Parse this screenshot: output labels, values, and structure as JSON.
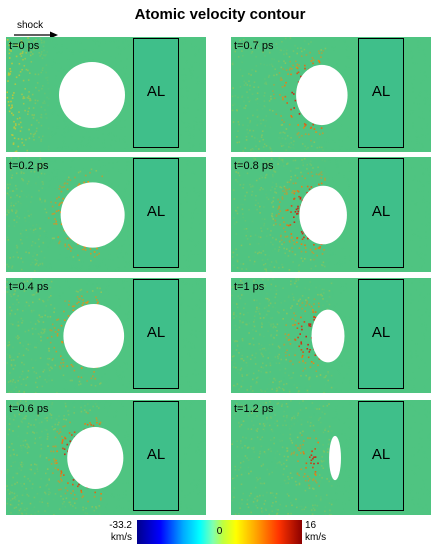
{
  "title": "Atomic velocity contour",
  "shock_label": "shock",
  "region_label": "AL",
  "panels": [
    {
      "time": "t=0 ps",
      "void_scale": 1.0,
      "hot": 0.0
    },
    {
      "time": "t=0.7 ps",
      "void_scale": 0.78,
      "hot": 0.75
    },
    {
      "time": "t=0.2 ps",
      "void_scale": 0.97,
      "hot": 0.15
    },
    {
      "time": "t=0.8 ps",
      "void_scale": 0.72,
      "hot": 0.8
    },
    {
      "time": "t=0.4 ps",
      "void_scale": 0.92,
      "hot": 0.35
    },
    {
      "time": "t=1 ps",
      "void_scale": 0.5,
      "hot": 0.9
    },
    {
      "time": "t=0.6 ps",
      "void_scale": 0.85,
      "hot": 0.6
    },
    {
      "time": "t=1.2 ps",
      "void_scale": 0.18,
      "hot": 1.0
    }
  ],
  "colorbar": {
    "min_value": "-33.2",
    "max_value": "16",
    "zero_label": "0",
    "unit": "km/s"
  }
}
